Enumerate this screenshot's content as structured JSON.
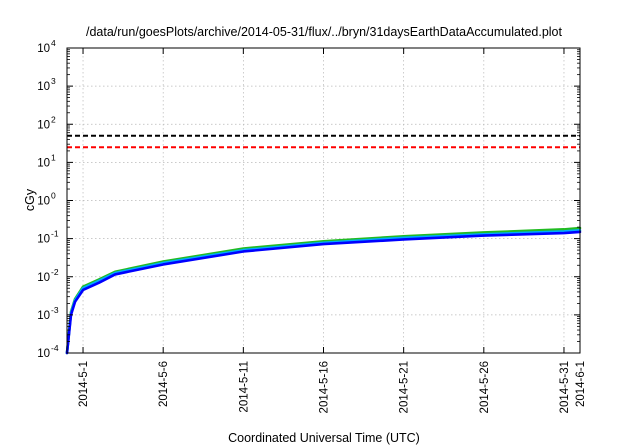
{
  "chart_data": {
    "type": "line",
    "title": "/data/run/goesPlots/archive/2014-05-31/flux/../bryn/31daysEarthDataAccumulated.plot",
    "xlabel": "Coordinated Universal Time (UTC)",
    "ylabel": "cGy",
    "y_scale": "log",
    "ylim": [
      0.0001,
      10000
    ],
    "xlim": [
      "2014-04-30",
      "2014-06-01"
    ],
    "grid": true,
    "x_ticks": [
      "2014-5-1",
      "2014-5-6",
      "2014-5-11",
      "2014-5-16",
      "2014-5-21",
      "2014-5-26",
      "2014-5-31",
      "2014-6-1"
    ],
    "x_tick_dates": [
      "2014-05-01",
      "2014-05-06",
      "2014-05-11",
      "2014-05-16",
      "2014-05-21",
      "2014-05-26",
      "2014-05-31",
      "2014-06-01"
    ],
    "y_tick_exponents": [
      -4,
      -3,
      -2,
      -1,
      0,
      1,
      2,
      3,
      4
    ],
    "y_tick_base": "10",
    "reference_lines": [
      {
        "value": 50,
        "color": "#000000",
        "style": "dashed"
      },
      {
        "value": 25,
        "color": "#ff0000",
        "style": "dashed"
      }
    ],
    "x": [
      "2014-04-30",
      "2014-04-30T06:00",
      "2014-04-30T12:00",
      "2014-05-01",
      "2014-05-02",
      "2014-05-03",
      "2014-05-06",
      "2014-05-11",
      "2014-05-16",
      "2014-05-21",
      "2014-05-26",
      "2014-05-31",
      "2014-06-01"
    ],
    "series": [
      {
        "color": "#22bb22",
        "values": [
          0.0001,
          0.0012,
          0.0026,
          0.0055,
          0.0085,
          0.0135,
          0.025,
          0.055,
          0.085,
          0.115,
          0.145,
          0.175,
          0.19
        ]
      },
      {
        "color": "#00aaff",
        "values": [
          0.0001,
          0.0011,
          0.0024,
          0.005,
          0.0078,
          0.0125,
          0.023,
          0.05,
          0.078,
          0.105,
          0.13,
          0.155,
          0.165
        ]
      },
      {
        "color": "#0000ff",
        "values": [
          0.0001,
          0.001,
          0.0022,
          0.0045,
          0.007,
          0.0115,
          0.021,
          0.046,
          0.072,
          0.095,
          0.12,
          0.14,
          0.15
        ]
      }
    ]
  }
}
